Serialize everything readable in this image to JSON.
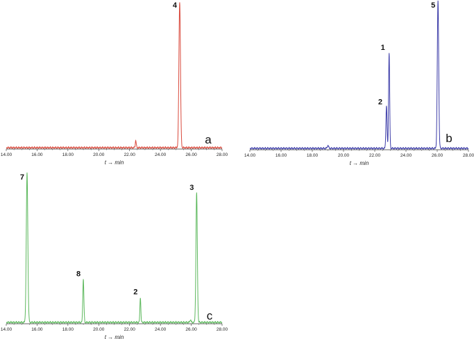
{
  "chart_data": [
    {
      "type": "line",
      "panel_label": "a",
      "xlabel": "t → min",
      "xlim": [
        14,
        28
      ],
      "x_ticks": [
        "14.00",
        "16.00",
        "18.00",
        "20.00",
        "22.00",
        "24.00",
        "26.00",
        "28.00"
      ],
      "color": "#d9483b",
      "baseline_x": [
        14.0,
        28.0
      ],
      "peaks": [
        {
          "x": 22.4,
          "height": 0.05,
          "width": 0.03,
          "label": ""
        },
        {
          "x": 25.25,
          "height": 1.0,
          "width": 0.05,
          "label": "4"
        }
      ]
    },
    {
      "type": "line",
      "panel_label": "b",
      "xlabel": "t → min",
      "xlim": [
        14,
        28
      ],
      "x_ticks": [
        "14.00",
        "16.00",
        "18.00",
        "20.00",
        "22.00",
        "24.00",
        "26.00",
        "28.00"
      ],
      "color": "#3b3ba8",
      "baseline_x": [
        14.0,
        28.0
      ],
      "peaks": [
        {
          "x": 19.0,
          "height": 0.02,
          "width": 0.04,
          "label": ""
        },
        {
          "x": 22.75,
          "height": 0.29,
          "width": 0.035,
          "label": "2"
        },
        {
          "x": 22.92,
          "height": 0.65,
          "width": 0.035,
          "label": "1"
        },
        {
          "x": 26.05,
          "height": 1.0,
          "width": 0.045,
          "label": "5"
        }
      ]
    },
    {
      "type": "line",
      "panel_label": "c",
      "xlabel": "t → min",
      "xlim": [
        14,
        28
      ],
      "x_ticks": [
        "14.00",
        "16.00",
        "18.00",
        "20.00",
        "22.00",
        "24.00",
        "26.00",
        "28.00"
      ],
      "color": "#5cb85c",
      "baseline_x": [
        14.0,
        28.0
      ],
      "peaks": [
        {
          "x": 15.35,
          "height": 1.0,
          "width": 0.05,
          "label": "7"
        },
        {
          "x": 19.0,
          "height": 0.29,
          "width": 0.035,
          "label": "8"
        },
        {
          "x": 22.7,
          "height": 0.17,
          "width": 0.03,
          "label": "2"
        },
        {
          "x": 25.95,
          "height": 0.02,
          "width": 0.03,
          "label": ""
        },
        {
          "x": 26.35,
          "height": 0.87,
          "width": 0.045,
          "label": "3"
        }
      ]
    }
  ]
}
